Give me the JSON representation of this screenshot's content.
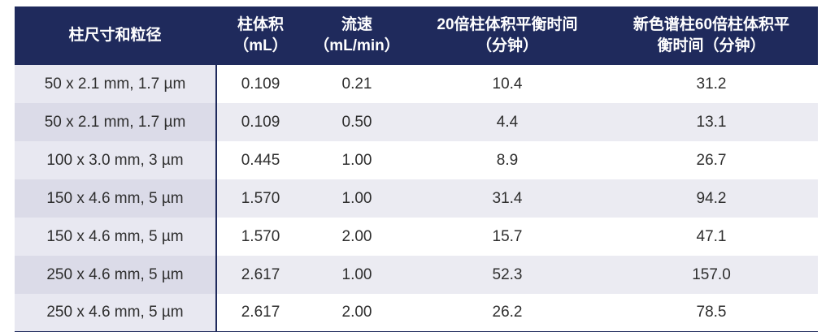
{
  "colors": {
    "header_bg": "#1f2a5c",
    "header_text": "#ffffff",
    "body_text": "#2e2e2e",
    "first_col_odd": "#e8e8f1",
    "first_col_even": "#dbdbe8",
    "row_odd": "#ffffff",
    "row_even": "#ebebf2",
    "border_navy": "#1f2a5c"
  },
  "table": {
    "headers": [
      "柱尺寸和粒径",
      "柱体积\n（mL）",
      "流速\n（mL/min）",
      "20倍柱体积平衡时间\n（分钟）",
      "新色谱柱60倍柱体积平\n衡时间（分钟）"
    ],
    "rows": [
      [
        "50 x 2.1 mm, 1.7 µm",
        "0.109",
        "0.21",
        "10.4",
        "31.2"
      ],
      [
        "50 x 2.1 mm, 1.7 µm",
        "0.109",
        "0.50",
        "4.4",
        "13.1"
      ],
      [
        "100 x 3.0 mm, 3 µm",
        "0.445",
        "1.00",
        "8.9",
        "26.7"
      ],
      [
        "150 x 4.6 mm, 5 µm",
        "1.570",
        "1.00",
        "31.4",
        "94.2"
      ],
      [
        "150 x 4.6 mm, 5 µm",
        "1.570",
        "2.00",
        "15.7",
        "47.1"
      ],
      [
        "250 x 4.6 mm, 5 µm",
        "2.617",
        "1.00",
        "52.3",
        "157.0"
      ],
      [
        "250 x 4.6 mm, 5 µm",
        "2.617",
        "2.00",
        "26.2",
        "78.5"
      ]
    ]
  }
}
